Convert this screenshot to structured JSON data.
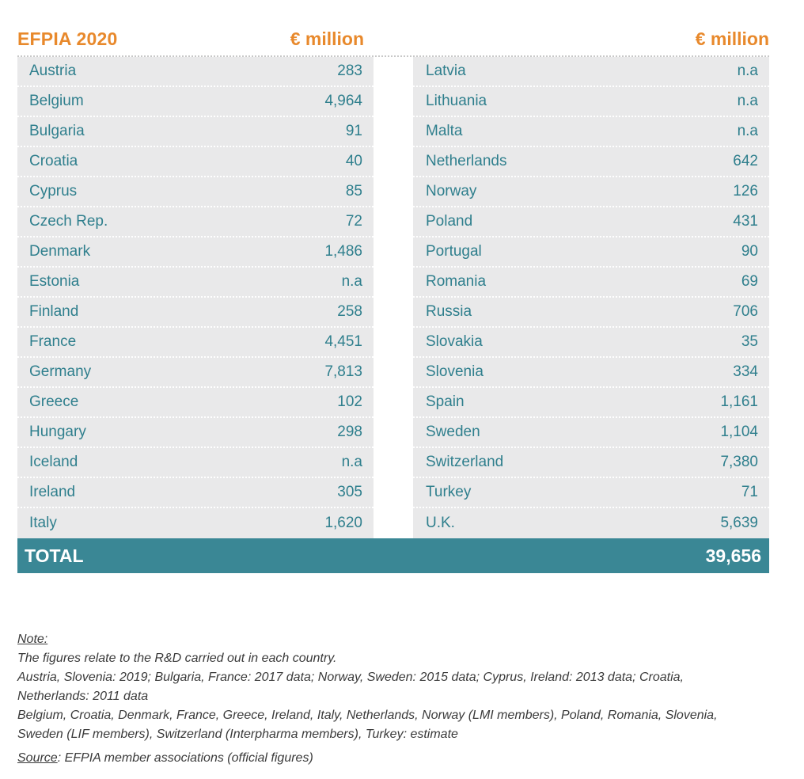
{
  "header": {
    "title": "EFPIA 2020",
    "unit_left": "€ million",
    "unit_right": "€ million"
  },
  "left_rows": [
    {
      "country": "Austria",
      "value": "283"
    },
    {
      "country": "Belgium",
      "value": "4,964"
    },
    {
      "country": "Bulgaria",
      "value": "91"
    },
    {
      "country": "Croatia",
      "value": "40"
    },
    {
      "country": "Cyprus",
      "value": "85"
    },
    {
      "country": "Czech Rep.",
      "value": "72"
    },
    {
      "country": "Denmark",
      "value": "1,486"
    },
    {
      "country": "Estonia",
      "value": "n.a"
    },
    {
      "country": "Finland",
      "value": "258"
    },
    {
      "country": "France",
      "value": "4,451"
    },
    {
      "country": "Germany",
      "value": "7,813"
    },
    {
      "country": "Greece",
      "value": "102"
    },
    {
      "country": "Hungary",
      "value": "298"
    },
    {
      "country": "Iceland",
      "value": "n.a"
    },
    {
      "country": "Ireland",
      "value": "305"
    },
    {
      "country": "Italy",
      "value": "1,620"
    }
  ],
  "right_rows": [
    {
      "country": "Latvia",
      "value": "n.a"
    },
    {
      "country": "Lithuania",
      "value": "n.a"
    },
    {
      "country": "Malta",
      "value": "n.a"
    },
    {
      "country": "Netherlands",
      "value": "642"
    },
    {
      "country": "Norway",
      "value": "126"
    },
    {
      "country": "Poland",
      "value": "431"
    },
    {
      "country": "Portugal",
      "value": "90"
    },
    {
      "country": "Romania",
      "value": "69"
    },
    {
      "country": "Russia",
      "value": "706"
    },
    {
      "country": "Slovakia",
      "value": "35"
    },
    {
      "country": "Slovenia",
      "value": "334"
    },
    {
      "country": "Spain",
      "value": "1,161"
    },
    {
      "country": "Sweden",
      "value": "1,104"
    },
    {
      "country": "Switzerland",
      "value": "7,380"
    },
    {
      "country": "Turkey",
      "value": "71"
    },
    {
      "country": "U.K.",
      "value": "5,639"
    }
  ],
  "total": {
    "label": "TOTAL",
    "value": "39,656"
  },
  "notes": {
    "heading": "Note:",
    "line1": "The figures relate to the R&D carried out in each country.",
    "line2": "Austria, Slovenia: 2019; Bulgaria, France: 2017 data; Norway, Sweden: 2015 data; Cyprus, Ireland: 2013 data; Croatia, Netherlands: 2011 data",
    "line3": "Belgium, Croatia, Denmark, France, Greece, Ireland, Italy, Netherlands, Norway (LMI members), Poland, Romania, Slovenia, Sweden (LIF members), Switzerland (Interpharma members), Turkey: estimate",
    "source_label": "Source",
    "source_text": ": EFPIA member associations (official figures)"
  },
  "colors": {
    "accent_orange": "#e8892c",
    "teal_text": "#2f7f8d",
    "total_bar": "#3a8795",
    "row_bg": "#e9e9ea"
  }
}
